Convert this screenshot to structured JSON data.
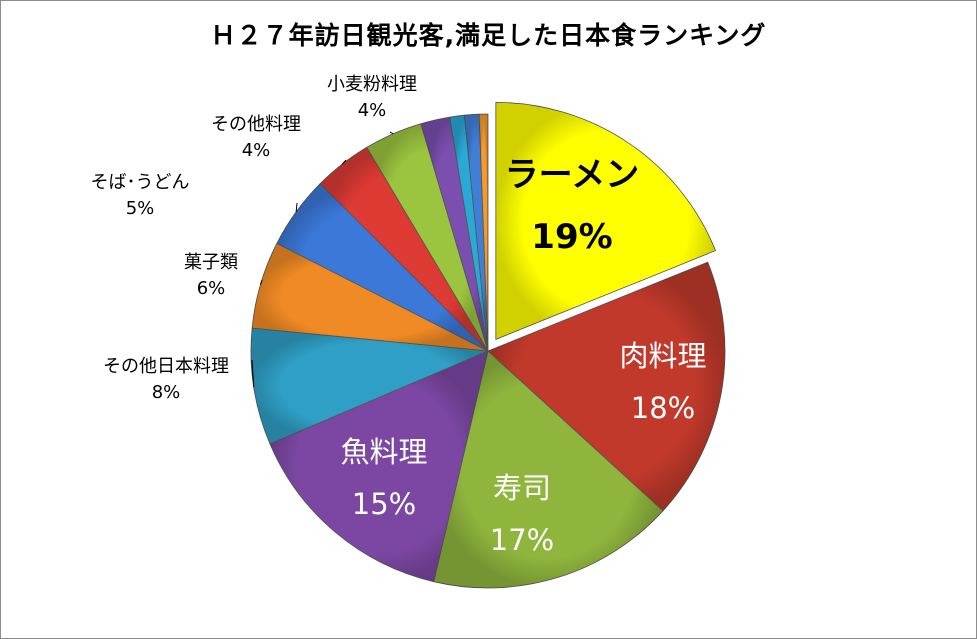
{
  "chart_data": {
    "type": "pie",
    "title": "Ｈ２７年訪日観光客,満足した日本食ランキング",
    "slices": [
      {
        "name": "ラーメン",
        "value": 19,
        "value_label": "19%",
        "color": "#ffff00",
        "exploded": true,
        "label_inside": true,
        "bold": true
      },
      {
        "name": "肉料理",
        "value": 18,
        "value_label": "18%",
        "color": "#c0392b",
        "label_inside": true
      },
      {
        "name": "寿司",
        "value": 17,
        "value_label": "17%",
        "color": "#8fb53d",
        "label_inside": true
      },
      {
        "name": "魚料理",
        "value": 15,
        "value_label": "15%",
        "color": "#7b47a3",
        "label_inside": true
      },
      {
        "name": "その他日本料理",
        "value": 8,
        "value_label": "8%",
        "color": "#2f9fc6",
        "label_inside": false
      },
      {
        "name": "菓子類",
        "value": 6,
        "value_label": "6%",
        "color": "#f08a24",
        "label_inside": false
      },
      {
        "name": "そば･うどん",
        "value": 5,
        "value_label": "5%",
        "color": "#3b78d8",
        "label_inside": false
      },
      {
        "name": "その他料理",
        "value": 4,
        "value_label": "4%",
        "color": "#de3a34",
        "label_inside": false
      },
      {
        "name": "小麦粉料理",
        "value": 4,
        "value_label": "4%",
        "color": "#9bc43f",
        "label_inside": false
      },
      {
        "name": "",
        "value": 2,
        "color": "#7a4fb0"
      },
      {
        "name": "",
        "value": 1,
        "color": "#2aa8d6"
      },
      {
        "name": "",
        "value": 1,
        "color": "#3f7fd6"
      },
      {
        "name": "",
        "value": 0.6,
        "color": "#f59a2c"
      }
    ],
    "legend": "none"
  }
}
